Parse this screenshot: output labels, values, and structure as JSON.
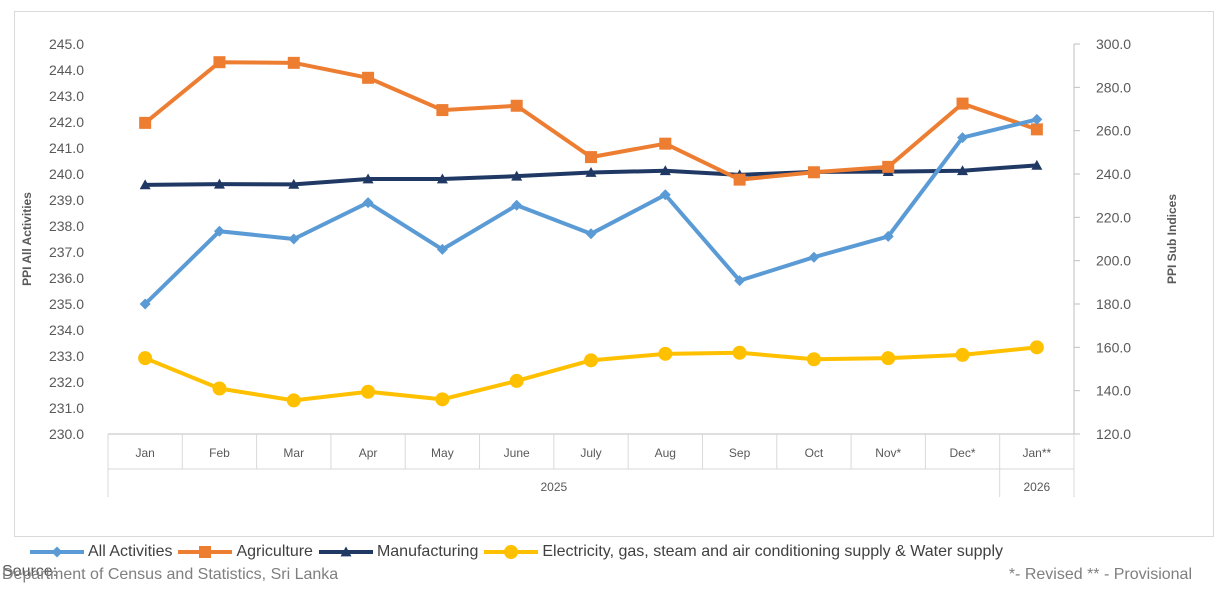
{
  "chart_data": {
    "type": "line",
    "ylabel_left": "PPI All Activities",
    "ylabel_right": "PPI Sub Indices",
    "ylim_left": [
      230,
      245
    ],
    "ylim_right": [
      120,
      300
    ],
    "left_ticks": [
      "230.0",
      "231.0",
      "232.0",
      "233.0",
      "234.0",
      "235.0",
      "236.0",
      "237.0",
      "238.0",
      "239.0",
      "240.0",
      "241.0",
      "242.0",
      "243.0",
      "244.0",
      "245.0"
    ],
    "right_ticks": [
      "120.0",
      "140.0",
      "160.0",
      "180.0",
      "200.0",
      "220.0",
      "240.0",
      "260.0",
      "280.0",
      "300.0"
    ],
    "categories": [
      "Jan",
      "Feb",
      "Mar",
      "Apr",
      "May",
      "June",
      "July",
      "Aug",
      "Sep",
      "Oct",
      "Nov*",
      "Dec*",
      "Jan**"
    ],
    "year_groups": [
      {
        "label": "2025",
        "count": 12
      },
      {
        "label": "2026",
        "count": 1
      }
    ],
    "grid": false,
    "legend_position": "bottom",
    "series": [
      {
        "name": "All Activities",
        "axis": "left",
        "color": "#5b9bd5",
        "marker": "diamond",
        "values": [
          235.0,
          237.8,
          237.5,
          238.9,
          237.1,
          238.8,
          237.7,
          239.2,
          235.9,
          236.8,
          237.6,
          241.4,
          242.1
        ]
      },
      {
        "name": "Agriculture",
        "axis": "right",
        "color": "#ed7d31",
        "marker": "square",
        "values": [
          263.6,
          291.6,
          291.3,
          284.4,
          269.5,
          271.5,
          247.8,
          254.0,
          237.4,
          240.8,
          243.3,
          272.5,
          260.6
        ]
      },
      {
        "name": "Manufacturing",
        "axis": "right",
        "color": "#203864",
        "marker": "triangle",
        "values": [
          235.0,
          235.3,
          235.2,
          237.7,
          237.7,
          239.0,
          240.7,
          241.5,
          239.6,
          241.0,
          241.1,
          241.5,
          244.0
        ]
      },
      {
        "name": "Electricity, gas, steam and air conditioning supply & Water supply",
        "axis": "right",
        "color": "#ffc000",
        "marker": "circle",
        "values": [
          155.0,
          141.0,
          135.5,
          139.5,
          136.0,
          144.5,
          154.0,
          157.0,
          157.5,
          154.5,
          155.0,
          156.5,
          160.0
        ]
      }
    ]
  },
  "source": {
    "heading": "Source:",
    "text": "Department of Census and Statistics, Sri Lanka"
  },
  "footnote": "*- Revised   ** - Provisional"
}
